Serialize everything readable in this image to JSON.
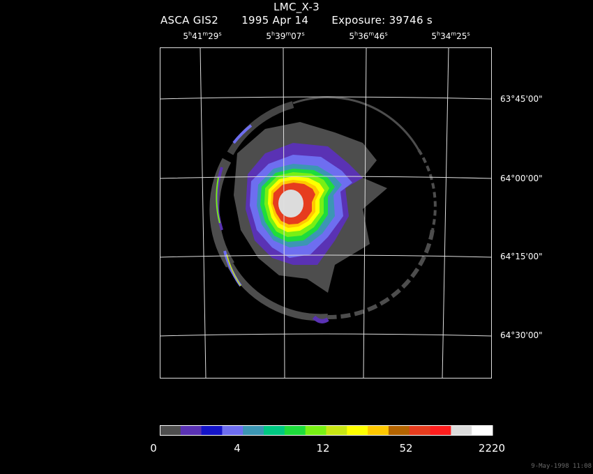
{
  "header": {
    "object": "LMC_X-3",
    "instrument": "ASCA GIS2",
    "date": "1995 Apr 14",
    "exposure": "Exposure: 39746 s"
  },
  "ra_labels": [
    {
      "h": "5",
      "m": "41",
      "s": "29"
    },
    {
      "h": "5",
      "m": "39",
      "s": "07"
    },
    {
      "h": "5",
      "m": "36",
      "s": "46"
    },
    {
      "h": "5",
      "m": "34",
      "s": "25"
    }
  ],
  "dec_labels": [
    "63°45'00\"",
    "64°00'00\"",
    "64°15'00\"",
    "64°30'00\""
  ],
  "colorbar": {
    "colors": [
      "#4d4d4d",
      "#5a32b4",
      "#1414c8",
      "#6e6ef0",
      "#3c96b4",
      "#00c882",
      "#1edc3c",
      "#78f014",
      "#c8e614",
      "#ffff00",
      "#ffc800",
      "#b46400",
      "#e63c1e",
      "#ff1e1e",
      "#dcdcdc",
      "#ffffff"
    ],
    "labels": [
      "0",
      "4",
      "12",
      "52",
      "2220"
    ]
  },
  "footer": {
    "timestamp": "9-May-1998 11:08"
  }
}
